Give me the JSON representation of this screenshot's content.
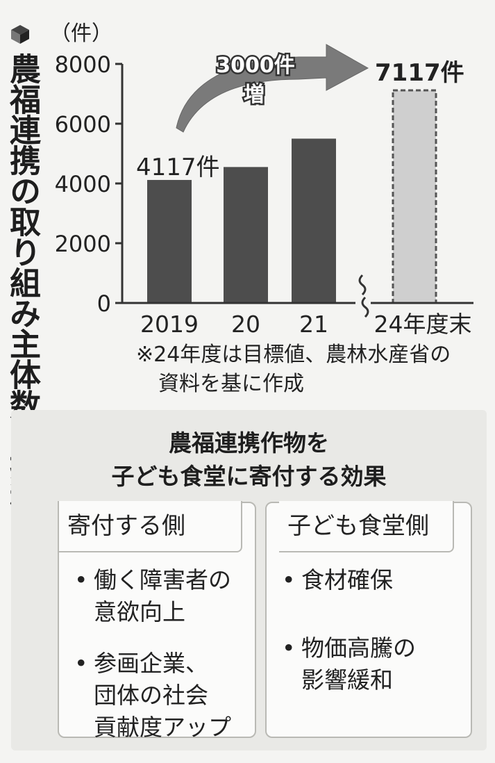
{
  "figure": {
    "vertical_title": "農福連携の取り組み主体数の推移"
  },
  "chart_data": {
    "type": "bar",
    "unit_label": "（件）",
    "categories": [
      "2019",
      "20",
      "21",
      "24年度末"
    ],
    "values": [
      4117,
      4550,
      5500,
      7117
    ],
    "target_index": 3,
    "ylim": [
      0,
      8000
    ],
    "yticks": [
      "8000",
      "6000",
      "4000",
      "2000",
      "0"
    ],
    "ytick_values": [
      8000,
      6000,
      4000,
      2000,
      0
    ],
    "annotations": {
      "first_label": "4117件",
      "target_label": "7117件",
      "increase_label_line1": "3000件",
      "increase_label_line2": "増"
    },
    "colors": {
      "bar": "#4d4d4d",
      "target_fill": "#cfcfcf",
      "target_border": "#555555",
      "arrow": "#7a7a7a"
    }
  },
  "note": {
    "line1": "※24年度は目標値、農林水産省の",
    "line2": "資料を基に作成"
  },
  "effects": {
    "title_line1": "農福連携作物を",
    "title_line2": "子ども食堂に寄付する効果",
    "left": {
      "heading": "寄付する側",
      "items": [
        [
          "働く障害者の",
          "意欲向上"
        ],
        [
          "参画企業、",
          "団体の社会",
          "貢献度アップ"
        ]
      ]
    },
    "right": {
      "heading": "子ども食堂側",
      "items": [
        [
          "食材確保"
        ],
        [
          "物価高騰の",
          "影響緩和"
        ]
      ]
    },
    "bullet": "•"
  }
}
